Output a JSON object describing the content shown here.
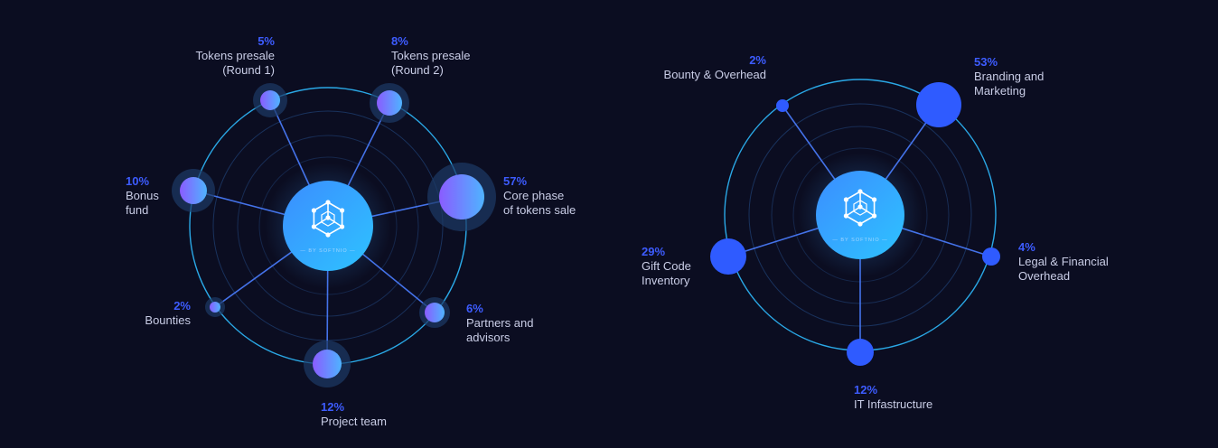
{
  "chart_data": [
    {
      "type": "radial-bubble",
      "center_brand": "BY SOFTNIO",
      "slices": [
        {
          "label": "Tokens presale\n(Round 1)",
          "value": 5
        },
        {
          "label": "Tokens presale\n(Round 2)",
          "value": 8
        },
        {
          "label": "Core phase\nof tokens sale",
          "value": 57
        },
        {
          "label": "Partners and\nadvisors",
          "value": 6
        },
        {
          "label": "Project team",
          "value": 12
        },
        {
          "label": "Bounties",
          "value": 2
        },
        {
          "label": "Bonus\nfund",
          "value": 10
        }
      ]
    },
    {
      "type": "radial-bubble",
      "center_brand": "BY SOFTNIO",
      "slices": [
        {
          "label": "Bounty & Overhead",
          "value": 2
        },
        {
          "label": "Branding and\nMarketing",
          "value": 53
        },
        {
          "label": "Legal & Financial\nOverhead",
          "value": 4
        },
        {
          "label": "IT Infastructure",
          "value": 12
        },
        {
          "label": "Gift Code\nInventory",
          "value": 29
        }
      ]
    }
  ],
  "colors": {
    "background": "#0b0d21",
    "percent": "#3d5cff",
    "label": "#c9cde6",
    "ring": "#2aa8e6",
    "bubble_gradient_start": "#7a5cff",
    "bubble_gradient_end": "#4fb3ff",
    "solid_bubble": "#2f5bff"
  },
  "center_icon": "network-cube-icon"
}
